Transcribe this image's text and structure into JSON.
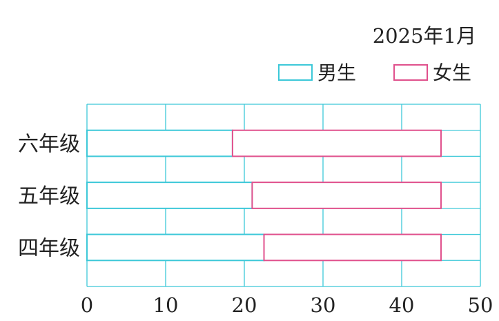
{
  "chart_data": {
    "type": "bar",
    "orientation": "horizontal",
    "stacked": true,
    "date_label": "2025年1月",
    "categories": [
      "六年级",
      "五年级",
      "四年级"
    ],
    "series": [
      {
        "name": "男生",
        "color": "#3cc8d8",
        "values": [
          18.5,
          21,
          22.5
        ]
      },
      {
        "name": "女生",
        "color": "#e0508c",
        "values": [
          26.5,
          24,
          22.5
        ]
      }
    ],
    "xticks": [
      "0",
      "10",
      "20",
      "30",
      "40",
      "50"
    ],
    "xlim": [
      0,
      50
    ],
    "grid": true,
    "legend_position": "top-right"
  }
}
